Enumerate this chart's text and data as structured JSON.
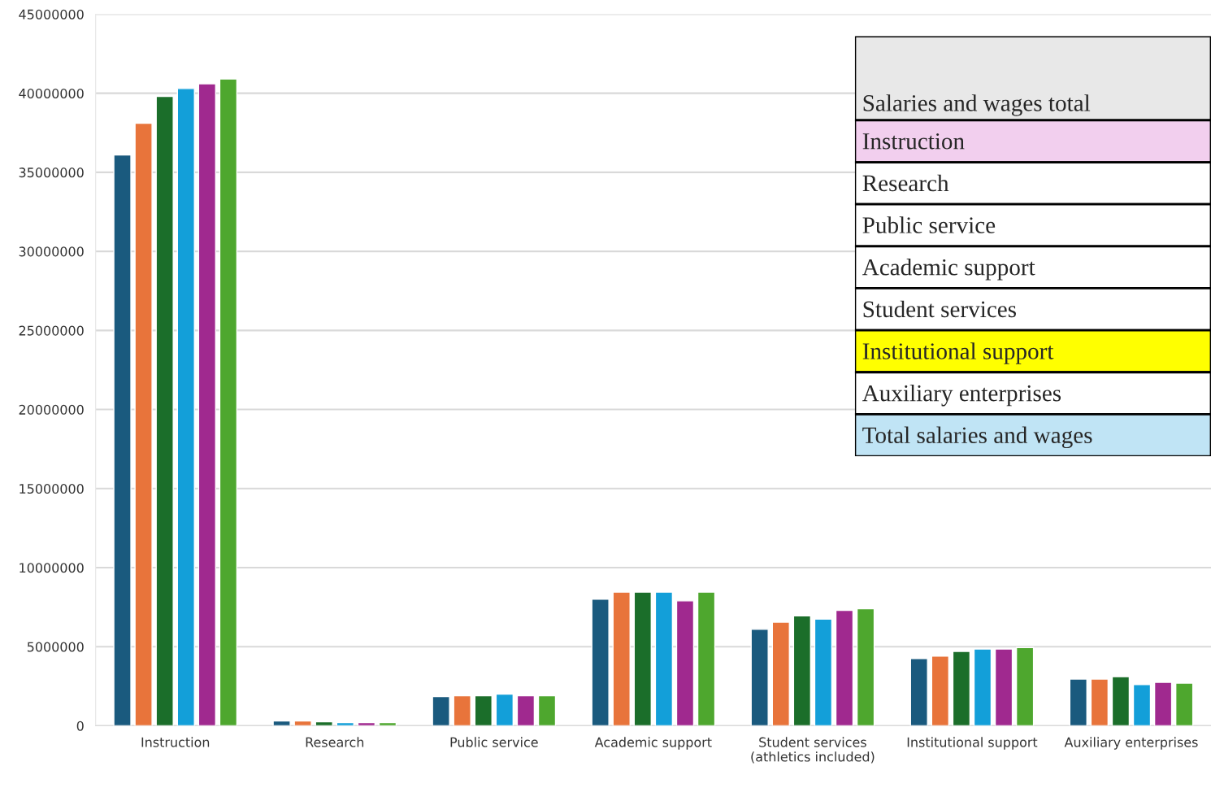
{
  "chart_data": [
    {
      "type": "bar",
      "categories": [
        "Instruction",
        "Research",
        "Public service",
        "Academic support",
        "Student services\n(athletics included)",
        "Institutional support",
        "Auxiliary enterprises"
      ],
      "series": [
        {
          "color": "#1a5a7e",
          "values": [
            36100000,
            300000,
            1850000,
            8000000,
            6100000,
            4250000,
            2950000
          ]
        },
        {
          "color": "#e8743b",
          "values": [
            38100000,
            300000,
            1900000,
            8450000,
            6550000,
            4400000,
            2950000
          ]
        },
        {
          "color": "#1b6e2a",
          "values": [
            39800000,
            250000,
            1900000,
            8450000,
            6950000,
            4700000,
            3100000
          ]
        },
        {
          "color": "#139fd9",
          "values": [
            40300000,
            200000,
            2000000,
            8450000,
            6750000,
            4850000,
            2600000
          ]
        },
        {
          "color": "#a0298f",
          "values": [
            40600000,
            200000,
            1900000,
            7900000,
            7300000,
            4850000,
            2750000
          ]
        },
        {
          "color": "#4ea72e",
          "values": [
            40900000,
            200000,
            1900000,
            8450000,
            7400000,
            4950000,
            2700000
          ]
        }
      ],
      "ylim": [
        0,
        45000000
      ],
      "yticks": [
        0,
        5000000,
        10000000,
        15000000,
        20000000,
        25000000,
        30000000,
        35000000,
        40000000,
        45000000
      ],
      "grid": "y",
      "legend": false
    },
    {
      "type": "other",
      "title": "Salaries and wages total",
      "annotations": [
        "Instruction",
        "Research",
        "Public service",
        "Academic support",
        "Student services",
        "Institutional support",
        "Auxiliary enterprises",
        "Total salaries and wages"
      ]
    }
  ]
}
